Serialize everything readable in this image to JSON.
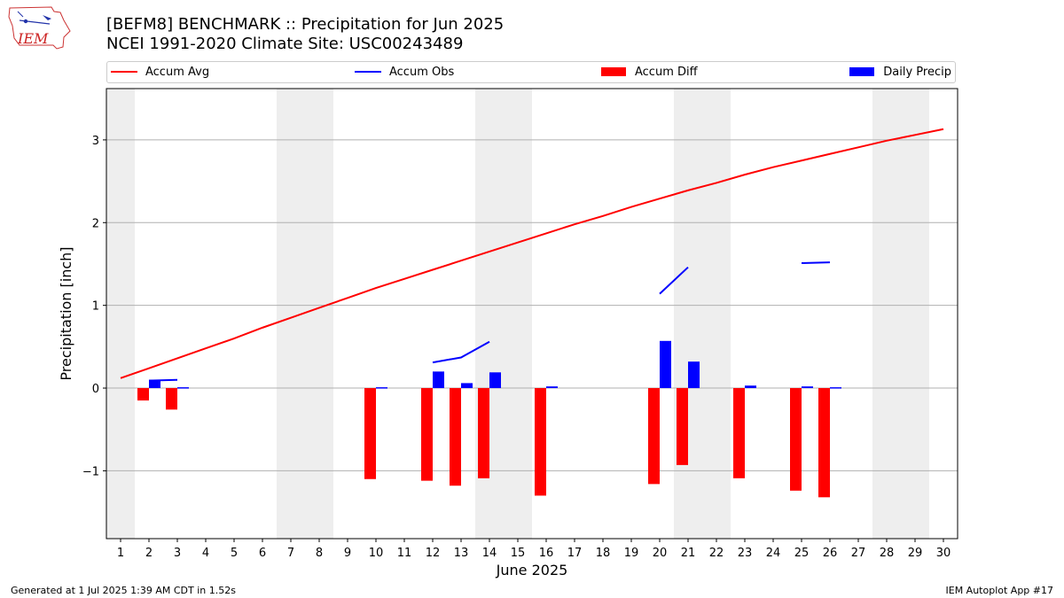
{
  "header": {
    "title_line1": "[BEFM8] BENCHMARK :: Precipitation for Jun 2025",
    "title_line2": "NCEI 1991-2020 Climate Site: USC00243489",
    "logo_text": "IEM"
  },
  "footer": {
    "left": "Generated at 1 Jul 2025 1:39 AM CDT in 1.52s",
    "right": "IEM Autoplot App #17"
  },
  "colors": {
    "avg": "#ff0000",
    "obs": "#0000ff",
    "diff": "#ff0000",
    "daily": "#0000ff",
    "weekend": "#eeeeee"
  },
  "chart_data": {
    "type": "bar",
    "xlabel": "June 2025",
    "ylabel": "Precipitation [inch]",
    "xlim": [
      0.5,
      30.5
    ],
    "ylim": [
      -1.82,
      3.62
    ],
    "yticks": [
      -1,
      0,
      1,
      2,
      3
    ],
    "ytick_labels": [
      "−1",
      "0",
      "1",
      "2",
      "3"
    ],
    "days": [
      1,
      2,
      3,
      4,
      5,
      6,
      7,
      8,
      9,
      10,
      11,
      12,
      13,
      14,
      15,
      16,
      17,
      18,
      19,
      20,
      21,
      22,
      23,
      24,
      25,
      26,
      27,
      28,
      29,
      30
    ],
    "grid": "horizontal",
    "legend_position": "top",
    "weekend_shading": [
      [
        0.5,
        1.5
      ],
      [
        6.5,
        8.5
      ],
      [
        13.5,
        15.5
      ],
      [
        20.5,
        22.5
      ],
      [
        27.5,
        29.5
      ]
    ],
    "series": [
      {
        "name": "Accum Avg",
        "kind": "line",
        "values": [
          0.12,
          0.24,
          0.36,
          0.48,
          0.6,
          0.73,
          0.85,
          0.97,
          1.09,
          1.21,
          1.32,
          1.43,
          1.54,
          1.65,
          1.76,
          1.87,
          1.98,
          2.08,
          2.19,
          2.29,
          2.39,
          2.48,
          2.58,
          2.67,
          2.75,
          2.83,
          2.91,
          2.99,
          3.06,
          3.13
        ]
      },
      {
        "name": "Accum Obs",
        "kind": "line",
        "values": [
          null,
          0.09,
          0.1,
          null,
          null,
          null,
          null,
          null,
          null,
          null,
          null,
          0.31,
          0.37,
          0.56,
          null,
          null,
          null,
          null,
          null,
          1.14,
          1.46,
          null,
          null,
          null,
          1.51,
          1.52,
          null,
          null,
          null,
          null
        ]
      },
      {
        "name": "Accum Diff",
        "kind": "bar",
        "values": [
          null,
          -0.15,
          -0.26,
          null,
          null,
          null,
          null,
          null,
          null,
          -1.1,
          null,
          -1.12,
          -1.18,
          -1.09,
          null,
          -1.3,
          null,
          null,
          null,
          -1.16,
          -0.93,
          null,
          -1.09,
          null,
          -1.24,
          -1.32,
          null,
          null,
          null,
          null
        ]
      },
      {
        "name": "Daily Precip",
        "kind": "bar",
        "values": [
          null,
          0.1,
          0.01,
          null,
          null,
          null,
          null,
          null,
          null,
          0.01,
          null,
          0.2,
          0.06,
          0.19,
          null,
          0.02,
          null,
          null,
          null,
          0.57,
          0.32,
          null,
          0.03,
          null,
          0.02,
          0.01,
          null,
          null,
          null,
          null
        ]
      }
    ]
  }
}
